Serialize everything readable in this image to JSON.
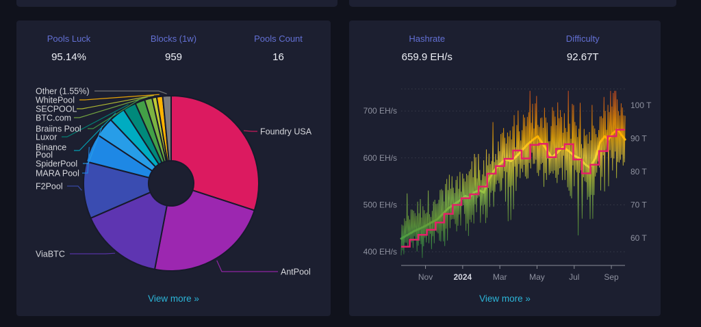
{
  "page": {
    "background": "#10121c",
    "card_background": "#1c1f30",
    "accent_label_color": "#6370d4",
    "link_color": "#2cb5d8"
  },
  "pools_card": {
    "stats": [
      {
        "label": "Pools Luck",
        "value": "95.14%"
      },
      {
        "label": "Blocks (1w)",
        "value": "959"
      },
      {
        "label": "Pools Count",
        "value": "16"
      }
    ],
    "view_more": "View more »"
  },
  "hashrate_card": {
    "stats": [
      {
        "label": "Hashrate",
        "value": "659.9 EH/s"
      },
      {
        "label": "Difficulty",
        "value": "92.67T"
      }
    ],
    "view_more": "View more »"
  },
  "chart_data": [
    {
      "type": "pie",
      "description": "Mining pool share of blocks over one week, donut chart",
      "total_blocks_1w": 959,
      "slices": [
        {
          "label": "Foundry USA",
          "pct": 30.0,
          "color": "#DC1A60"
        },
        {
          "label": "AntPool",
          "pct": 23.0,
          "color": "#9C27B0"
        },
        {
          "label": "ViaBTC",
          "pct": 15.5,
          "color": "#5E35B1"
        },
        {
          "label": "F2Pool",
          "pct": 10.5,
          "color": "#3A4CB1"
        },
        {
          "label": "MARA Pool",
          "pct": 5.3,
          "color": "#1E88E5"
        },
        {
          "label": "SpiderPool",
          "pct": 3.6,
          "color": "#279DE8"
        },
        {
          "label": "Binance Pool",
          "pct": 3.0,
          "color": "#00ACC1"
        },
        {
          "label": "Luxor",
          "pct": 2.4,
          "color": "#00897B"
        },
        {
          "label": "Braiins Pool",
          "pct": 1.8,
          "color": "#43A047"
        },
        {
          "label": "BTC.com",
          "pct": 1.4,
          "color": "#7CB342"
        },
        {
          "label": "SECPOOL",
          "pct": 0.85,
          "color": "#C0CA33"
        },
        {
          "label": "WhitePool",
          "pct": 1.1,
          "color": "#FFB300"
        },
        {
          "label": "Other (1.55%)",
          "pct": 1.55,
          "color": "#7E7E7E"
        }
      ]
    },
    {
      "type": "line",
      "description": "Network hashrate (left axis, EH/s) and difficulty (right axis, T) over ~12 months",
      "x_axis": {
        "ticks": [
          {
            "label": "Nov",
            "t": 1.31,
            "bold": false
          },
          {
            "label": "2024",
            "t": 3.31,
            "bold": true
          },
          {
            "label": "Mar",
            "t": 5.31,
            "bold": false
          },
          {
            "label": "May",
            "t": 7.31,
            "bold": false
          },
          {
            "label": "Jul",
            "t": 9.31,
            "bold": false
          },
          {
            "label": "Sep",
            "t": 11.31,
            "bold": false
          }
        ],
        "domain_months": [
          0,
          12.05
        ]
      },
      "left_axis": {
        "unit": "EH/s",
        "ticks": [
          {
            "label": "400 EH/s",
            "v": 400
          },
          {
            "label": "500 EH/s",
            "v": 500
          },
          {
            "label": "600 EH/s",
            "v": 600
          },
          {
            "label": "700 EH/s",
            "v": 700
          }
        ],
        "range": [
          371,
          747
        ]
      },
      "right_axis": {
        "unit": "T",
        "ticks": [
          {
            "label": "60 T",
            "v": 60
          },
          {
            "label": "70 T",
            "v": 70
          },
          {
            "label": "80 T",
            "v": 80
          },
          {
            "label": "90 T",
            "v": 90
          },
          {
            "label": "100 T",
            "v": 100
          }
        ]
      },
      "value_color_gradient": [
        [
          747,
          "#F4511E"
        ],
        [
          690,
          "#FB8C00"
        ],
        [
          645,
          "#FFB300"
        ],
        [
          605,
          "#FDD835"
        ],
        [
          560,
          "#C0CA33"
        ],
        [
          515,
          "#8BC34A"
        ],
        [
          465,
          "#689F38"
        ],
        [
          415,
          "#43A047"
        ],
        [
          371,
          "#2E7D32"
        ]
      ],
      "series": [
        {
          "name": "hashrate-ma",
          "style": "smooth",
          "points": [
            [
              0,
              428
            ],
            [
              0.35,
              436
            ],
            [
              0.7,
              444
            ],
            [
              1.05,
              450
            ],
            [
              1.35,
              456
            ],
            [
              1.65,
              463
            ],
            [
              1.95,
              469
            ],
            [
              2.25,
              481
            ],
            [
              2.55,
              493
            ],
            [
              2.85,
              501
            ],
            [
              3.15,
              509
            ],
            [
              3.45,
              519
            ],
            [
              3.65,
              515
            ],
            [
              3.95,
              527
            ],
            [
              4.2,
              531
            ],
            [
              4.45,
              526
            ],
            [
              4.7,
              553
            ],
            [
              5.0,
              573
            ],
            [
              5.3,
              586
            ],
            [
              5.6,
              597
            ],
            [
              5.9,
              593
            ],
            [
              6.2,
              603
            ],
            [
              6.5,
              616
            ],
            [
              6.8,
              629
            ],
            [
              7.1,
              639
            ],
            [
              7.35,
              646
            ],
            [
              7.6,
              631
            ],
            [
              7.9,
              613
            ],
            [
              8.1,
              601
            ],
            [
              8.4,
              611
            ],
            [
              8.7,
              623
            ],
            [
              9.0,
              615
            ],
            [
              9.3,
              605
            ],
            [
              9.6,
              599
            ],
            [
              9.9,
              586
            ],
            [
              10.15,
              579
            ],
            [
              10.45,
              599
            ],
            [
              10.7,
              633
            ],
            [
              10.95,
              646
            ],
            [
              11.15,
              639
            ],
            [
              11.4,
              653
            ],
            [
              11.65,
              661
            ],
            [
              11.85,
              649
            ],
            [
              12.05,
              639
            ]
          ]
        },
        {
          "name": "hashrate-raw",
          "style": "noisy",
          "derived_from": "hashrate-ma",
          "noise_seed": 42,
          "points_count": 340,
          "noise_amplitude_ehs": [
            40,
            3.0
          ]
        },
        {
          "name": "difficulty",
          "style": "step",
          "color": "#E42069",
          "retarget_width_months": 0.463,
          "values_t": [
            57.4,
            59.5,
            61.0,
            62.5,
            64.7,
            67.3,
            70.0,
            72.0,
            73.2,
            75.5,
            79.4,
            81.7,
            83.9,
            86.4,
            84.0,
            88.1,
            88.4,
            84.4,
            86.9,
            88.3,
            83.7,
            79.5,
            82.1,
            86.2,
            90.7,
            92.67
          ]
        }
      ]
    }
  ]
}
